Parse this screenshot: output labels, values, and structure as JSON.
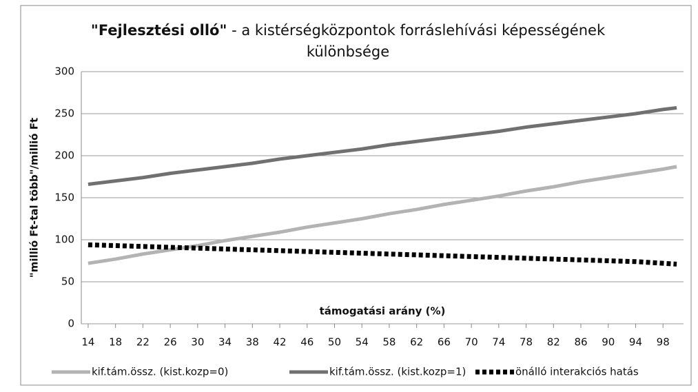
{
  "chart_data": {
    "type": "line",
    "title": [
      "\"Fejlesztési olló\"",
      "- a kistérségközpontok forráslehívási képességének",
      "különbsége"
    ],
    "x_label": "támogatási arány (%)",
    "y_label": "\"millió Ft-tal több\"/millió Ft",
    "x": [
      14,
      18,
      22,
      26,
      30,
      34,
      38,
      42,
      46,
      50,
      54,
      58,
      62,
      66,
      70,
      74,
      78,
      82,
      86,
      90,
      94,
      98,
      100
    ],
    "series": [
      {
        "name": "kif.tám.össz. (kist.kozp=0)",
        "color": "#b3b3b3",
        "dash": "solid",
        "values": [
          72,
          77,
          83,
          88,
          93,
          99,
          104,
          109,
          115,
          120,
          125,
          131,
          136,
          142,
          147,
          152,
          158,
          163,
          169,
          174,
          179,
          184,
          187
        ]
      },
      {
        "name": "kif.tám.össz. (kist.kozp=1)",
        "color": "#707070",
        "dash": "solid",
        "values": [
          166,
          170,
          174,
          179,
          183,
          187,
          191,
          196,
          200,
          204,
          208,
          213,
          217,
          221,
          225,
          229,
          234,
          238,
          242,
          246,
          250,
          255,
          257
        ]
      },
      {
        "name": "önálló interakciós hatás",
        "color": "#000000",
        "dash": "dotted",
        "values": [
          94,
          93,
          92,
          91,
          90,
          89,
          88,
          87,
          86,
          85,
          84,
          83,
          82,
          81,
          80,
          79,
          78,
          77,
          76,
          75,
          74,
          72,
          71
        ]
      }
    ],
    "xlim": [
      13,
      101
    ],
    "xticks": [
      14,
      18,
      22,
      26,
      30,
      34,
      38,
      42,
      46,
      50,
      54,
      58,
      62,
      66,
      70,
      74,
      78,
      82,
      86,
      90,
      94,
      98
    ],
    "ylim": [
      0,
      300
    ],
    "yticks": [
      0,
      50,
      100,
      150,
      200,
      250,
      300
    ],
    "grid": true,
    "legend": "bottom"
  }
}
